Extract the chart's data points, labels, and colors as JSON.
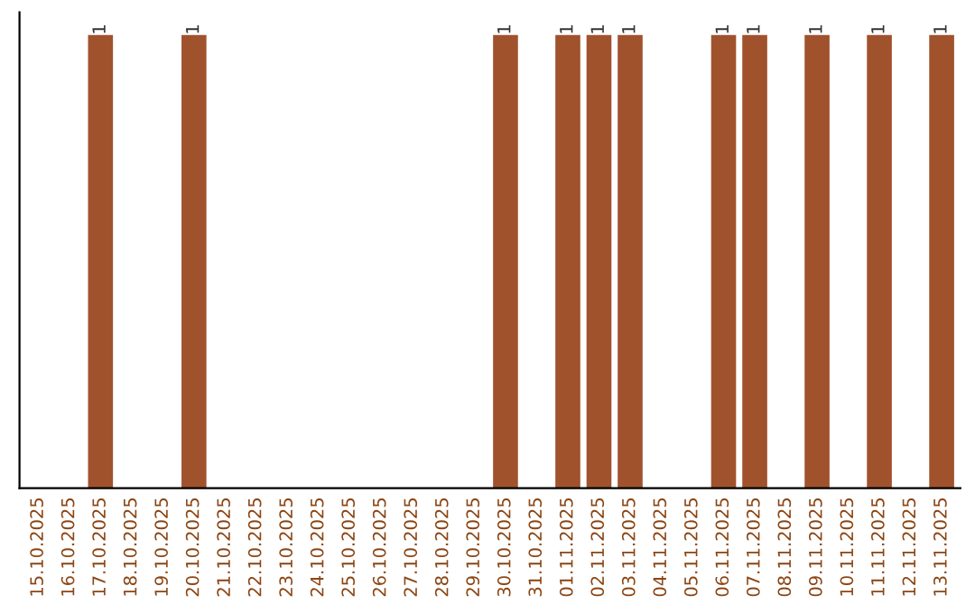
{
  "chart_data": {
    "type": "bar",
    "categories": [
      "15.10.2025",
      "16.10.2025",
      "17.10.2025",
      "18.10.2025",
      "19.10.2025",
      "20.10.2025",
      "21.10.2025",
      "22.10.2025",
      "23.10.2025",
      "24.10.2025",
      "25.10.2025",
      "26.10.2025",
      "27.10.2025",
      "28.10.2025",
      "29.10.2025",
      "30.10.2025",
      "31.10.2025",
      "01.11.2025",
      "02.11.2025",
      "03.11.2025",
      "04.11.2025",
      "05.11.2025",
      "06.11.2025",
      "07.11.2025",
      "08.11.2025",
      "09.11.2025",
      "10.11.2025",
      "11.11.2025",
      "12.11.2025",
      "13.11.2025"
    ],
    "series": [
      {
        "color": "#a0522d",
        "values": [
          0,
          0,
          1,
          0,
          0,
          1,
          0,
          0,
          0,
          0,
          0,
          0,
          0,
          0,
          0,
          1,
          0,
          1,
          1,
          1,
          0,
          0,
          1,
          1,
          0,
          1,
          0,
          1,
          0,
          1
        ],
        "value_labels": [
          null,
          null,
          "1",
          null,
          null,
          "1",
          null,
          null,
          null,
          null,
          null,
          null,
          null,
          null,
          null,
          "1",
          null,
          "1",
          "1",
          "1",
          null,
          null,
          "1",
          "1",
          null,
          "1",
          null,
          "1",
          null,
          "1"
        ]
      }
    ],
    "tick_labels": "x",
    "grid": false,
    "legend": false
  }
}
